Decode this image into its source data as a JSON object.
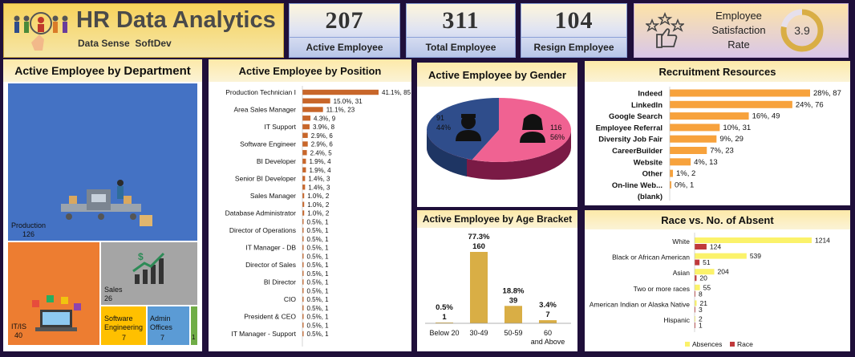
{
  "header": {
    "title": "HR Data Analytics",
    "subtitle": "Data Sense  SoftDev"
  },
  "kpis": [
    {
      "value": "207",
      "label": "Active Employee"
    },
    {
      "value": "311",
      "label": "Total Employee"
    },
    {
      "value": "104",
      "label": "Resign Employee"
    }
  ],
  "satisfaction": {
    "label_line1": "Employee",
    "label_line2": "Satisfaction",
    "label_line3": "Rate",
    "value": "3.9",
    "level": 3.9,
    "max": 5
  },
  "colors": {
    "bar_orange": "#c8662a",
    "rec_orange": "#f7a23c",
    "gold": "#d9ae45",
    "yellow": "#fbf26a",
    "red": "#c0393b",
    "pink": "#f06292",
    "navy": "#2f4d8b",
    "blue": "#4472c4",
    "orange_tile": "#ed7d31",
    "gray_tile": "#a5a5a5",
    "yellow_tile": "#ffc000",
    "light_blue_tile": "#5b9bd5",
    "green_tile": "#70ad47"
  },
  "chart_data": [
    {
      "type": "treemap",
      "title_prefix": "Active Employee by ",
      "title_emph": "Department",
      "items": [
        {
          "name": "Production",
          "value": 126
        },
        {
          "name": "IT/IS",
          "value": 40
        },
        {
          "name": "Sales",
          "value": 26
        },
        {
          "name": "Software Engineering",
          "value": 7
        },
        {
          "name": "Admin Offices",
          "value": 7
        },
        {
          "name": "",
          "value": 1
        }
      ]
    },
    {
      "type": "bar",
      "title": "Active Employee by Position",
      "categories": [
        "Production Technician I",
        "",
        "Area Sales Manager",
        "",
        "IT Support",
        "",
        "Software Engineer",
        "",
        "BI Developer",
        "",
        "Senior BI Developer",
        "",
        "Sales Manager",
        "",
        "Database Administrator",
        "",
        "Director of Operations",
        "",
        "IT Manager - DB",
        "",
        "Director of Sales",
        "",
        "BI Director",
        "",
        "CIO",
        "",
        "President & CEO",
        "",
        "IT Manager - Support"
      ],
      "values": [
        85,
        31,
        23,
        9,
        8,
        6,
        6,
        5,
        4,
        4,
        3,
        3,
        2,
        2,
        2,
        1,
        1,
        1,
        1,
        1,
        1,
        1,
        1,
        1,
        1,
        1,
        1,
        1,
        1
      ],
      "labels": [
        "41.1%, 85",
        "15.0%, 31",
        "11.1%, 23",
        "4.3%, 9",
        "3.9%, 8",
        "2.9%, 6",
        "2.9%, 6",
        "2.4%, 5",
        "1.9%, 4",
        "1.9%, 4",
        "1.4%, 3",
        "1.4%, 3",
        "1.0%, 2",
        "1.0%, 2",
        "1.0%, 2",
        "0.5%, 1",
        "0.5%, 1",
        "0.5%, 1",
        "0.5%, 1",
        "0.5%, 1",
        "0.5%, 1",
        "0.5%, 1",
        "0.5%, 1",
        "0.5%, 1",
        "0.5%, 1",
        "0.5%, 1",
        "0.5%, 1",
        "0.5%, 1",
        "0.5%, 1"
      ]
    },
    {
      "type": "pie",
      "title": "Active Employee by Gender",
      "slices": [
        {
          "name": "Male",
          "value": 91,
          "pct": "44%"
        },
        {
          "name": "Female",
          "value": 116,
          "pct": "56%"
        }
      ]
    },
    {
      "type": "bar",
      "title": "Recruitment Resources",
      "categories": [
        "Indeed",
        "LinkedIn",
        "Google Search",
        "Employee Referral",
        "Diversity Job Fair",
        "CareerBuilder",
        "Website",
        "Other",
        "On-line Web...",
        "(blank)"
      ],
      "values": [
        87,
        76,
        49,
        31,
        29,
        23,
        13,
        2,
        1,
        0
      ],
      "labels": [
        "28%, 87",
        "24%, 76",
        "16%, 49",
        "10%, 31",
        "9%, 29",
        "7%, 23",
        "4%, 13",
        "1%, 2",
        "0%, 1",
        ""
      ]
    },
    {
      "type": "bar",
      "title": "Active Employee by Age Bracket",
      "categories": [
        "Below 20",
        "30-49",
        "50-59",
        "60 and Above"
      ],
      "values": [
        1,
        160,
        39,
        7
      ],
      "pcts": [
        "0.5%",
        "77.3%",
        "18.8%",
        "3.4%"
      ]
    },
    {
      "type": "bar",
      "title": "Race vs. No. of Absent",
      "categories": [
        "White",
        "Black or African American",
        "Asian",
        "Two or more races",
        "American Indian or Alaska Native",
        "Hispanic"
      ],
      "series": [
        {
          "name": "Absences",
          "values": [
            1214,
            539,
            204,
            55,
            21,
            2
          ]
        },
        {
          "name": "Race",
          "values": [
            124,
            51,
            20,
            8,
            3,
            1
          ]
        }
      ]
    }
  ]
}
